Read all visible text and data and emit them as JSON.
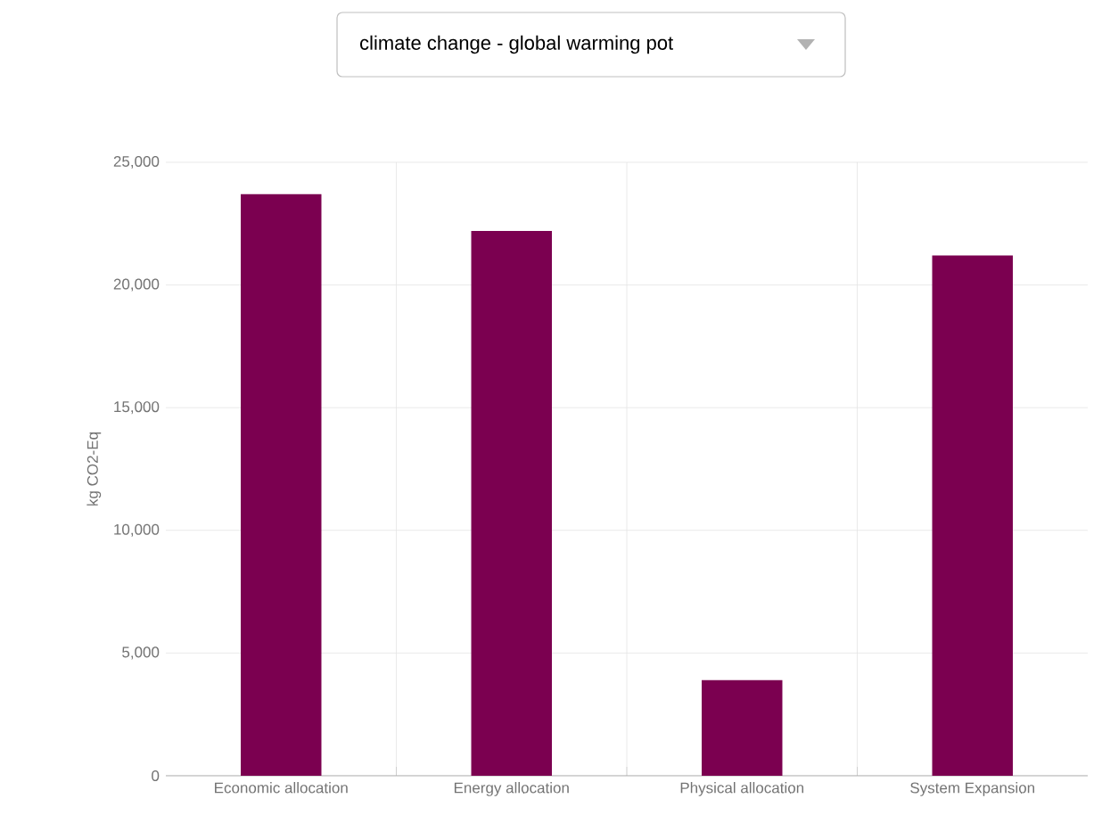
{
  "chart_data": {
    "type": "bar",
    "title": "climate change - global warming pot",
    "categories": [
      "Economic allocation",
      "Energy allocation",
      "Physical allocation",
      "System Expansion"
    ],
    "values": [
      23700,
      22200,
      3900,
      21200
    ],
    "color": "#7b0050",
    "ylabel": "kg CO2-Eq",
    "ylim": [
      0,
      25000
    ],
    "yticks": [
      {
        "value": 0,
        "label": "0"
      },
      {
        "value": 5000,
        "label": "5,000"
      },
      {
        "value": 10000,
        "label": "10,000"
      },
      {
        "value": 15000,
        "label": "15,000"
      },
      {
        "value": 20000,
        "label": "20,000"
      },
      {
        "value": 25000,
        "label": "25,000"
      }
    ],
    "grid": true
  }
}
